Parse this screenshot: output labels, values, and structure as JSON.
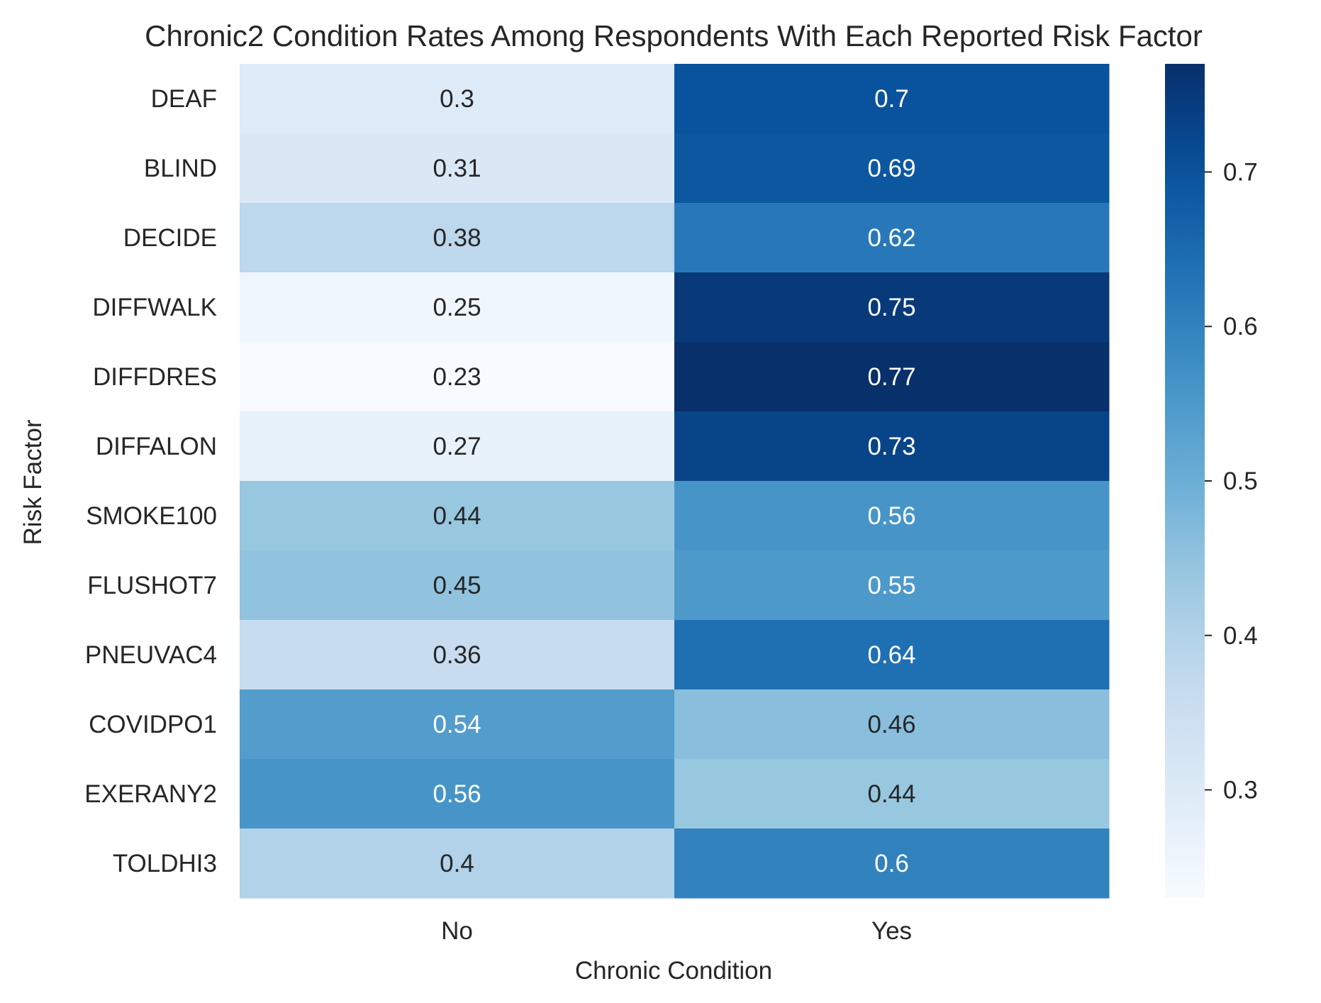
{
  "chart_data": {
    "type": "heatmap",
    "title": "Chronic2 Condition Rates Among Respondents With Each Reported Risk Factor",
    "xlabel": "Chronic Condition",
    "ylabel": "Risk Factor",
    "columns": [
      "No",
      "Yes"
    ],
    "rows": [
      "DEAF",
      "BLIND",
      "DECIDE",
      "DIFFWALK",
      "DIFFDRES",
      "DIFFALON",
      "SMOKE100",
      "FLUSHOT7",
      "PNEUVAC4",
      "COVIDPO1",
      "EXERANY2",
      "TOLDHI3"
    ],
    "values": [
      [
        0.3,
        0.7
      ],
      [
        0.31,
        0.69
      ],
      [
        0.38,
        0.62
      ],
      [
        0.25,
        0.75
      ],
      [
        0.23,
        0.77
      ],
      [
        0.27,
        0.73
      ],
      [
        0.44,
        0.56
      ],
      [
        0.45,
        0.55
      ],
      [
        0.36,
        0.64
      ],
      [
        0.54,
        0.46
      ],
      [
        0.56,
        0.44
      ],
      [
        0.4,
        0.6
      ]
    ],
    "colormap": "Blues",
    "vmin": 0.23,
    "vmax": 0.77,
    "colorbar_ticks": [
      0.3,
      0.4,
      0.5,
      0.6,
      0.7
    ],
    "colorbar_tick_labels": [
      "0.3",
      "0.4",
      "0.5",
      "0.6",
      "0.7"
    ],
    "grid": false
  }
}
